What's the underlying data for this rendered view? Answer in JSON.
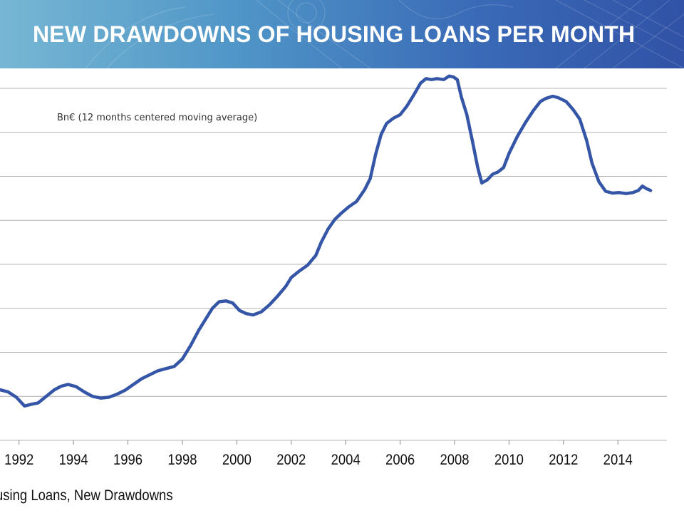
{
  "slide": {
    "title": "NEW DRAWDOWNS OF HOUSING LOANS PER MONTH",
    "caption": "using Loans, New Drawdowns"
  },
  "colors": {
    "header_start": "#77b7d4",
    "header_end": "#3152a6",
    "series_line": "#3556a7",
    "grid": "#b4b4b4"
  },
  "chart_data": {
    "type": "line",
    "title": "",
    "annotation": "Bn€ (12 months centered moving average)",
    "xlabel": "",
    "ylabel": "",
    "x_ticks": [
      "1992",
      "1994",
      "1996",
      "1998",
      "2000",
      "2002",
      "2004",
      "2006",
      "2008",
      "2010",
      "2012",
      "2014"
    ],
    "xlim": [
      1991.3,
      2015.8
    ],
    "ylim": [
      0,
      8
    ],
    "grid": true,
    "legend": "none",
    "series": [
      {
        "x": [
          1991.3,
          1991.6,
          1991.9,
          1992.2,
          1992.45,
          1992.7,
          1993.0,
          1993.3,
          1993.55,
          1993.8,
          1994.1,
          1994.4,
          1994.7,
          1995.0,
          1995.3,
          1995.6,
          1995.9,
          1996.2,
          1996.5,
          1996.8,
          1997.1,
          1997.4,
          1997.7,
          1998.0,
          1998.3,
          1998.6,
          1998.9,
          1999.1,
          1999.35,
          1999.6,
          1999.85,
          2000.1,
          2000.35,
          2000.6,
          2000.9,
          2001.2,
          2001.5,
          2001.8,
          2002.0,
          2002.3,
          2002.6,
          2002.9,
          2003.1,
          2003.35,
          2003.6,
          2003.85,
          2004.1,
          2004.4,
          2004.7,
          2004.9,
          2005.1,
          2005.3,
          2005.5,
          2005.75,
          2006.0,
          2006.25,
          2006.5,
          2006.75,
          2006.95,
          2007.15,
          2007.35,
          2007.6,
          2007.8,
          2007.95,
          2008.1,
          2008.25,
          2008.45,
          2008.65,
          2008.85,
          2009.0,
          2009.2,
          2009.4,
          2009.6,
          2009.8,
          2010.0,
          2010.3,
          2010.6,
          2010.9,
          2011.15,
          2011.35,
          2011.6,
          2011.8,
          2012.1,
          2012.35,
          2012.6,
          2012.85,
          2013.05,
          2013.3,
          2013.55,
          2013.8,
          2014.05,
          2014.3,
          2014.55,
          2014.75,
          2014.9,
          2015.05,
          2015.2
        ],
        "y": [
          1.15,
          1.1,
          0.98,
          0.78,
          0.82,
          0.85,
          1.0,
          1.15,
          1.23,
          1.27,
          1.22,
          1.1,
          1.0,
          0.96,
          0.98,
          1.05,
          1.14,
          1.27,
          1.4,
          1.49,
          1.58,
          1.63,
          1.68,
          1.85,
          2.15,
          2.5,
          2.8,
          3.0,
          3.15,
          3.17,
          3.12,
          2.95,
          2.88,
          2.85,
          2.92,
          3.08,
          3.28,
          3.5,
          3.7,
          3.85,
          3.98,
          4.2,
          4.5,
          4.8,
          5.02,
          5.17,
          5.3,
          5.43,
          5.7,
          5.95,
          6.5,
          6.95,
          7.2,
          7.32,
          7.4,
          7.6,
          7.85,
          8.12,
          8.22,
          8.2,
          8.22,
          8.2,
          8.28,
          8.26,
          8.2,
          7.8,
          7.4,
          6.82,
          6.2,
          5.85,
          5.92,
          6.05,
          6.1,
          6.2,
          6.52,
          6.9,
          7.22,
          7.5,
          7.7,
          7.77,
          7.82,
          7.79,
          7.7,
          7.52,
          7.3,
          6.82,
          6.3,
          5.88,
          5.66,
          5.62,
          5.63,
          5.61,
          5.63,
          5.68,
          5.78,
          5.72,
          5.68
        ]
      }
    ]
  }
}
